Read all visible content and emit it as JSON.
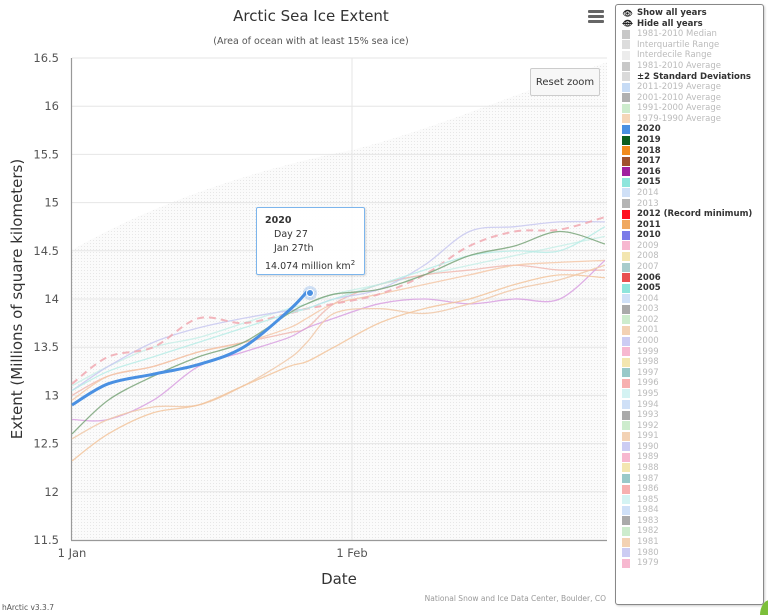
{
  "chart": {
    "title": "Arctic Sea Ice Extent",
    "subtitle": "(Area of ocean with at least 15% sea ice)",
    "reset_zoom_label": "Reset zoom",
    "credit": "National Snow and Ice Data Center, Boulder, CO",
    "version": "hArctic v3.3.7",
    "xaxis_title": "Date",
    "yaxis_title": "Extent (Millions of square kilometers)",
    "y_ticks": [
      "16.5",
      "16",
      "15.5",
      "15",
      "14.5",
      "14",
      "13.5",
      "13",
      "12.5",
      "12",
      "11.5"
    ],
    "x_ticks": [
      "1 Jan",
      "1 Feb"
    ]
  },
  "tooltip": {
    "year": "2020",
    "day": "Day 27",
    "date": "Jan 27th",
    "value": "14.074 million km",
    "unit_sup": "2"
  },
  "legend": {
    "show_all": "Show all years",
    "hide_all": "Hide all years",
    "items": [
      {
        "label": "1981-2010 Median",
        "color": "#c8c8c8",
        "on": false
      },
      {
        "label": "Interquartile Range",
        "color": "#dcdcdc",
        "on": false
      },
      {
        "label": "Interdecile Range",
        "color": "#ececec",
        "on": false
      },
      {
        "label": "1981-2010 Average",
        "color": "#c8c8c8",
        "on": false
      },
      {
        "label": "±2 Standard Deviations",
        "color": "#dadada",
        "on": true
      },
      {
        "label": "2011-2019 Average",
        "color": "#c6dbf5",
        "on": false
      },
      {
        "label": "2001-2010 Average",
        "color": "#b0b0b0",
        "on": false
      },
      {
        "label": "1991-2000 Average",
        "color": "#cdeccd",
        "on": false
      },
      {
        "label": "1979-1990 Average",
        "color": "#f5d6b8",
        "on": false
      },
      {
        "label": "2020",
        "color": "#4a90e2",
        "on": true
      },
      {
        "label": "2019",
        "color": "#0b5e1e",
        "on": true
      },
      {
        "label": "2018",
        "color": "#f28c1c",
        "on": true
      },
      {
        "label": "2017",
        "color": "#a0522d",
        "on": true
      },
      {
        "label": "2016",
        "color": "#a020a0",
        "on": true
      },
      {
        "label": "2015",
        "color": "#8ee5dc",
        "on": true
      },
      {
        "label": "2014",
        "color": "#cfe0f7",
        "on": false
      },
      {
        "label": "2013",
        "color": "#b4b4b4",
        "on": false
      },
      {
        "label": "2012 (Record minimum)",
        "color": "#ff1020",
        "on": true
      },
      {
        "label": "2011",
        "color": "#f0a860",
        "on": true
      },
      {
        "label": "2010",
        "color": "#7b7be8",
        "on": true
      },
      {
        "label": "2009",
        "color": "#f7b8d0",
        "on": false
      },
      {
        "label": "2008",
        "color": "#f3e6b0",
        "on": false
      },
      {
        "label": "2007",
        "color": "#a8cccc",
        "on": false
      },
      {
        "label": "2006",
        "color": "#e85050",
        "on": true
      },
      {
        "label": "2005",
        "color": "#8ee5dc",
        "on": true
      },
      {
        "label": "2004",
        "color": "#cfe0f7",
        "on": false
      },
      {
        "label": "2003",
        "color": "#aaaaaa",
        "on": false
      },
      {
        "label": "2002",
        "color": "#cdeccd",
        "on": false
      },
      {
        "label": "2001",
        "color": "#f3d2b4",
        "on": false
      },
      {
        "label": "2000",
        "color": "#ccccf3",
        "on": false
      },
      {
        "label": "1999",
        "color": "#f7b8d0",
        "on": false
      },
      {
        "label": "1998",
        "color": "#f3e6b0",
        "on": false
      },
      {
        "label": "1997",
        "color": "#99c9c9",
        "on": false
      },
      {
        "label": "1996",
        "color": "#f7b0b0",
        "on": false
      },
      {
        "label": "1995",
        "color": "#d4f3f3",
        "on": false
      },
      {
        "label": "1994",
        "color": "#cfe0f7",
        "on": false
      },
      {
        "label": "1993",
        "color": "#aaaaaa",
        "on": false
      },
      {
        "label": "1992",
        "color": "#cdeccd",
        "on": false
      },
      {
        "label": "1991",
        "color": "#f3d2b4",
        "on": false
      },
      {
        "label": "1990",
        "color": "#ccccf3",
        "on": false
      },
      {
        "label": "1989",
        "color": "#f7b8d0",
        "on": false
      },
      {
        "label": "1988",
        "color": "#f3e6b0",
        "on": false
      },
      {
        "label": "1987",
        "color": "#99c9c9",
        "on": false
      },
      {
        "label": "1986",
        "color": "#f7b0b0",
        "on": false
      },
      {
        "label": "1985",
        "color": "#d4f3f3",
        "on": false
      },
      {
        "label": "1984",
        "color": "#cfe0f7",
        "on": false
      },
      {
        "label": "1983",
        "color": "#aaaaaa",
        "on": false
      },
      {
        "label": "1982",
        "color": "#cdeccd",
        "on": false
      },
      {
        "label": "1981",
        "color": "#f3d2b4",
        "on": false
      },
      {
        "label": "1980",
        "color": "#ccccf3",
        "on": false
      },
      {
        "label": "1979",
        "color": "#f7b8d0",
        "on": false
      }
    ]
  },
  "chart_data": {
    "type": "line",
    "title": "Arctic Sea Ice Extent",
    "subtitle": "(Area of ocean with at least 15% sea ice)",
    "xlabel": "Date",
    "ylabel": "Extent (Millions of square kilometers)",
    "ylim": [
      11.5,
      16.5
    ],
    "xlim_days": [
      1,
      60
    ],
    "x_tick_labels": [
      "1 Jan",
      "1 Feb"
    ],
    "grid": true,
    "legend_position": "right",
    "x": [
      1,
      5,
      10,
      15,
      20,
      25,
      27,
      30,
      35,
      40,
      45,
      50,
      55,
      60
    ],
    "series": [
      {
        "name": "2020",
        "color": "#4a90e2",
        "values": [
          12.9,
          13.12,
          13.22,
          13.32,
          13.5,
          13.88,
          14.074,
          null,
          null,
          null,
          null,
          null,
          null,
          null
        ]
      },
      {
        "name": "2019",
        "color": "#7aa57a",
        "values": [
          12.6,
          12.95,
          13.2,
          13.4,
          13.55,
          13.85,
          13.95,
          14.05,
          14.1,
          14.25,
          14.45,
          14.55,
          14.7,
          14.57
        ]
      },
      {
        "name": "2018",
        "color": "#f2c49c",
        "values": [
          12.32,
          12.6,
          12.82,
          12.9,
          13.1,
          13.3,
          13.35,
          13.5,
          13.75,
          13.9,
          14.0,
          14.15,
          14.25,
          14.22
        ]
      },
      {
        "name": "2017",
        "color": "#f0c8a8",
        "values": [
          12.55,
          12.75,
          12.88,
          12.9,
          13.1,
          13.38,
          13.55,
          13.85,
          13.9,
          13.85,
          13.95,
          14.1,
          14.2,
          14.35
        ]
      },
      {
        "name": "2016",
        "color": "#d8a0e0",
        "values": [
          12.75,
          12.75,
          12.95,
          13.3,
          13.45,
          13.6,
          13.7,
          13.8,
          13.95,
          14.0,
          13.95,
          14.0,
          14.0,
          14.4
        ]
      },
      {
        "name": "2015",
        "color": "#b8ece6",
        "values": [
          13.05,
          13.25,
          13.4,
          13.55,
          13.7,
          13.85,
          13.9,
          14.0,
          14.15,
          14.3,
          14.45,
          14.5,
          14.5,
          14.75
        ]
      },
      {
        "name": "2012 (Record minimum)",
        "color": "#f0a8b0",
        "values": [
          13.12,
          13.4,
          13.5,
          13.8,
          13.75,
          13.85,
          13.9,
          13.95,
          14.05,
          14.25,
          14.55,
          14.7,
          14.72,
          14.85
        ]
      },
      {
        "name": "2011",
        "color": "#f5c8a8",
        "values": [
          12.95,
          13.2,
          13.3,
          13.45,
          13.55,
          13.7,
          13.8,
          13.95,
          14.05,
          14.15,
          14.25,
          14.35,
          14.38,
          14.4
        ]
      },
      {
        "name": "2010",
        "color": "#c8c8f0",
        "values": [
          13.05,
          13.3,
          13.55,
          13.7,
          13.8,
          13.88,
          13.9,
          14.0,
          14.1,
          14.35,
          14.7,
          14.75,
          14.8,
          14.8
        ]
      },
      {
        "name": "2006",
        "color": "#f0b8b0",
        "values": [
          13.0,
          13.2,
          13.3,
          13.45,
          13.55,
          13.65,
          13.7,
          13.95,
          14.15,
          14.25,
          14.3,
          14.35,
          14.3,
          14.3
        ]
      },
      {
        "name": "2005",
        "color": "#c8eee8",
        "values": [
          13.1,
          13.3,
          13.5,
          13.6,
          13.75,
          13.9,
          13.95,
          14.05,
          14.15,
          14.25,
          14.35,
          14.45,
          14.55,
          14.65
        ]
      }
    ]
  }
}
